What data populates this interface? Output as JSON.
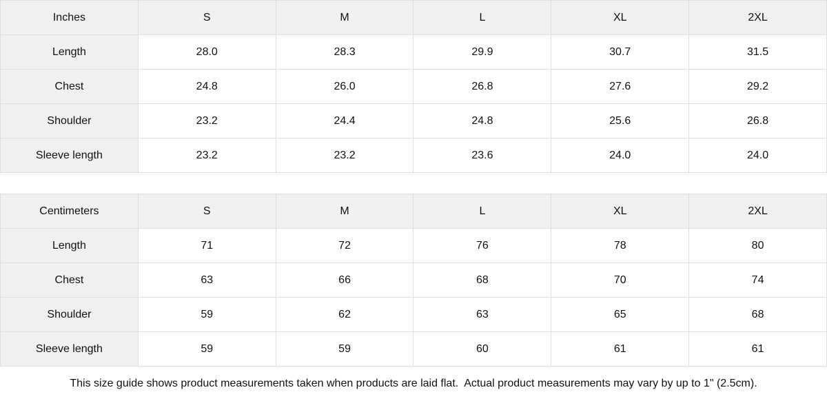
{
  "tables": [
    {
      "unit_label": "Inches",
      "sizes": [
        "S",
        "M",
        "L",
        "XL",
        "2XL"
      ],
      "rows": [
        {
          "label": "Length",
          "values": [
            "28.0",
            "28.3",
            "29.9",
            "30.7",
            "31.5"
          ]
        },
        {
          "label": "Chest",
          "values": [
            "24.8",
            "26.0",
            "26.8",
            "27.6",
            "29.2"
          ]
        },
        {
          "label": "Shoulder",
          "values": [
            "23.2",
            "24.4",
            "24.8",
            "25.6",
            "26.8"
          ]
        },
        {
          "label": "Sleeve length",
          "values": [
            "23.2",
            "23.2",
            "23.6",
            "24.0",
            "24.0"
          ]
        }
      ]
    },
    {
      "unit_label": "Centimeters",
      "sizes": [
        "S",
        "M",
        "L",
        "XL",
        "2XL"
      ],
      "rows": [
        {
          "label": "Length",
          "values": [
            "71",
            "72",
            "76",
            "78",
            "80"
          ]
        },
        {
          "label": "Chest",
          "values": [
            "63",
            "66",
            "68",
            "70",
            "74"
          ]
        },
        {
          "label": "Shoulder",
          "values": [
            "59",
            "62",
            "63",
            "65",
            "68"
          ]
        },
        {
          "label": "Sleeve length",
          "values": [
            "59",
            "59",
            "60",
            "61",
            "61"
          ]
        }
      ]
    }
  ],
  "footer": {
    "note": "This size guide shows product measurements taken when products are laid flat.  Actual product measurements may vary by up to 1\" (2.5cm)."
  },
  "colors": {
    "header_bg": "#f0f0f0",
    "border": "#dedede",
    "text": "#111111",
    "cell_bg": "#ffffff"
  }
}
